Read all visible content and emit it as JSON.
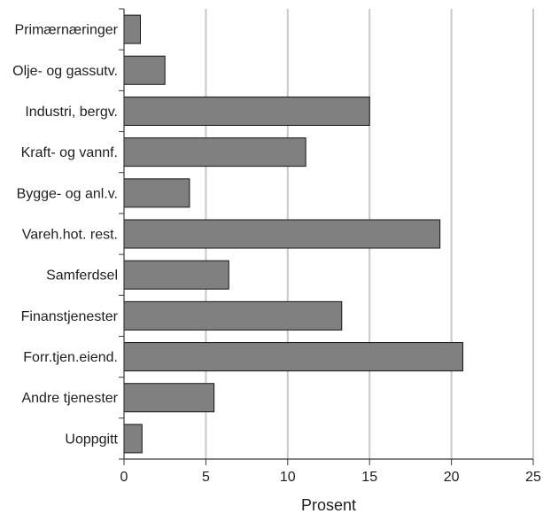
{
  "chart_data": {
    "type": "bar",
    "orientation": "horizontal",
    "categories": [
      "Primærnæringer",
      "Olje- og gassutv.",
      "Industri, bergv.",
      "Kraft- og vannf.",
      "Bygge- og anl.v.",
      "Vareh.hot. rest.",
      "Samferdsel",
      "Finanstjenester",
      "Forr.tjen.eiend.",
      "Andre tjenester",
      "Uoppgitt"
    ],
    "values": [
      1.0,
      2.5,
      15.0,
      11.1,
      4.0,
      19.3,
      6.4,
      13.3,
      20.7,
      5.5,
      1.1
    ],
    "xlabel": "Prosent",
    "ylabel": "",
    "xlim": [
      0,
      25
    ],
    "xticks": [
      0,
      5,
      10,
      15,
      20,
      25
    ],
    "grid": true,
    "legend": "none",
    "colors": {
      "bar": "#808080",
      "bar_stroke": "#141414",
      "grid": "#c9c9c9",
      "axis": "#3a3a3a",
      "text": "#1e1e1e"
    }
  }
}
